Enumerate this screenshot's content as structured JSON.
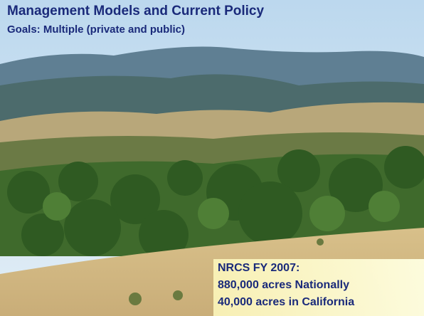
{
  "slide": {
    "title": "Management Models and Current Policy",
    "subtitle": "Goals: Multiple (private and public)",
    "callout": {
      "lines": [
        "NRCS FY 2007:",
        "880,000 acres Nationally",
        "40,000 acres in California"
      ]
    }
  }
}
